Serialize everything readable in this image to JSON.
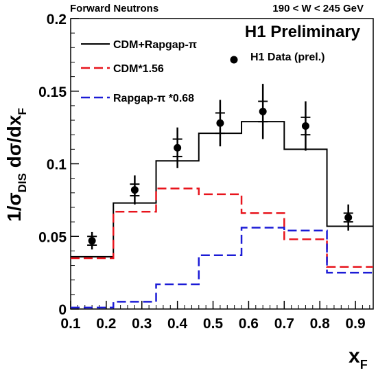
{
  "header": {
    "left_label": "Forward Neutrons",
    "right_label": "190 < W < 245 GeV",
    "preliminary": "H1 Preliminary"
  },
  "chart_data": {
    "type": "line",
    "xlabel_main": "x",
    "xlabel_sub": "F",
    "ylabel": {
      "pre": "1/σ",
      "pre_sub": "DIS",
      "post": " dσ/dx",
      "post_sub": "F"
    },
    "xlim": [
      0.1,
      0.95
    ],
    "ylim": [
      0,
      0.2
    ],
    "x_ticks": [
      "0.1",
      "0.2",
      "0.3",
      "0.4",
      "0.5",
      "0.6",
      "0.7",
      "0.8",
      "0.9"
    ],
    "y_ticks": [
      "0",
      "0.05",
      "0.1",
      "0.15",
      "0.2"
    ],
    "bin_edges": [
      0.1,
      0.22,
      0.34,
      0.46,
      0.58,
      0.7,
      0.82,
      0.95
    ],
    "series": [
      {
        "name": "CDM+Rapgap-π",
        "style": "solid",
        "color": "#000000",
        "values": [
          0.036,
          0.073,
          0.102,
          0.121,
          0.129,
          0.11,
          0.057
        ]
      },
      {
        "name": "CDM*1.56",
        "style": "dashed",
        "color": "#e8141c",
        "values": [
          0.035,
          0.067,
          0.083,
          0.079,
          0.066,
          0.048,
          0.029
        ]
      },
      {
        "name": "Rapgap-π *0.68",
        "style": "dashed",
        "color": "#1b1bd6",
        "values": [
          0.001,
          0.005,
          0.017,
          0.037,
          0.056,
          0.054,
          0.025
        ]
      }
    ],
    "points": {
      "name": "H1 Data (prel.)",
      "x": [
        0.16,
        0.28,
        0.4,
        0.52,
        0.64,
        0.76,
        0.88
      ],
      "y": [
        0.047,
        0.082,
        0.111,
        0.128,
        0.136,
        0.126,
        0.063
      ],
      "err_stat": [
        0.003,
        0.004,
        0.006,
        0.007,
        0.007,
        0.006,
        0.003
      ],
      "err_tot": [
        0.006,
        0.01,
        0.014,
        0.016,
        0.019,
        0.017,
        0.009
      ]
    },
    "legend": [
      {
        "label": "CDM+Rapgap-π",
        "style": "solid",
        "color": "#000000"
      },
      {
        "label": "CDM*1.56",
        "style": "dashed",
        "color": "#e8141c"
      },
      {
        "label": "Rapgap-π *0.68",
        "style": "dashed",
        "color": "#1b1bd6"
      },
      {
        "label": "H1 Data (prel.)",
        "style": "marker",
        "color": "#000000"
      }
    ]
  }
}
